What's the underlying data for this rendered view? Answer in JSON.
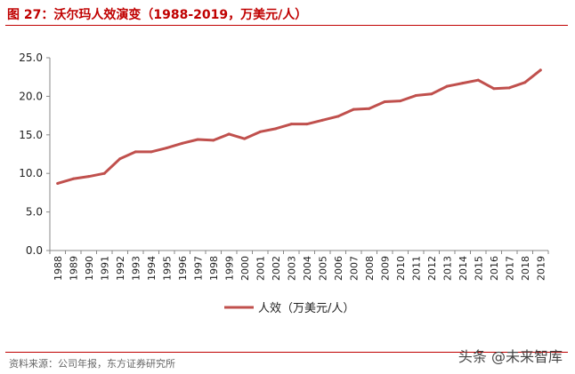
{
  "header": {
    "title": "图 27：沃尔玛人效演变（1988-2019，万美元/人）"
  },
  "source": "资料来源：公司年报，东方证券研究所",
  "watermark": "头条 @未来智库",
  "colors": {
    "accent": "#c00000",
    "series": "#c0504d",
    "axis": "#888888"
  },
  "chart_data": {
    "type": "line",
    "title": "图 27：沃尔玛人效演变（1988-2019，万美元/人）",
    "xlabel": "",
    "ylabel": "",
    "ylim": [
      0,
      25
    ],
    "yticks": [
      "0.0",
      "5.0",
      "10.0",
      "15.0",
      "20.0",
      "25.0"
    ],
    "grid": false,
    "legend_position": "bottom-center",
    "categories": [
      "1988",
      "1989",
      "1990",
      "1991",
      "1992",
      "1993",
      "1994",
      "1995",
      "1996",
      "1997",
      "1998",
      "1999",
      "2000",
      "2001",
      "2002",
      "2003",
      "2004",
      "2005",
      "2006",
      "2007",
      "2008",
      "2009",
      "2010",
      "2011",
      "2012",
      "2013",
      "2014",
      "2015",
      "2016",
      "2017",
      "2018",
      "2019"
    ],
    "series": [
      {
        "name": "人效（万美元/人）",
        "values": [
          8.7,
          9.3,
          9.6,
          10.0,
          11.9,
          12.8,
          12.8,
          13.3,
          13.9,
          14.4,
          14.3,
          15.1,
          14.5,
          15.4,
          15.8,
          16.4,
          16.4,
          16.9,
          17.4,
          18.3,
          18.4,
          19.3,
          19.4,
          20.1,
          20.3,
          21.3,
          21.7,
          22.1,
          21.0,
          21.1,
          21.8,
          23.4
        ]
      }
    ]
  }
}
